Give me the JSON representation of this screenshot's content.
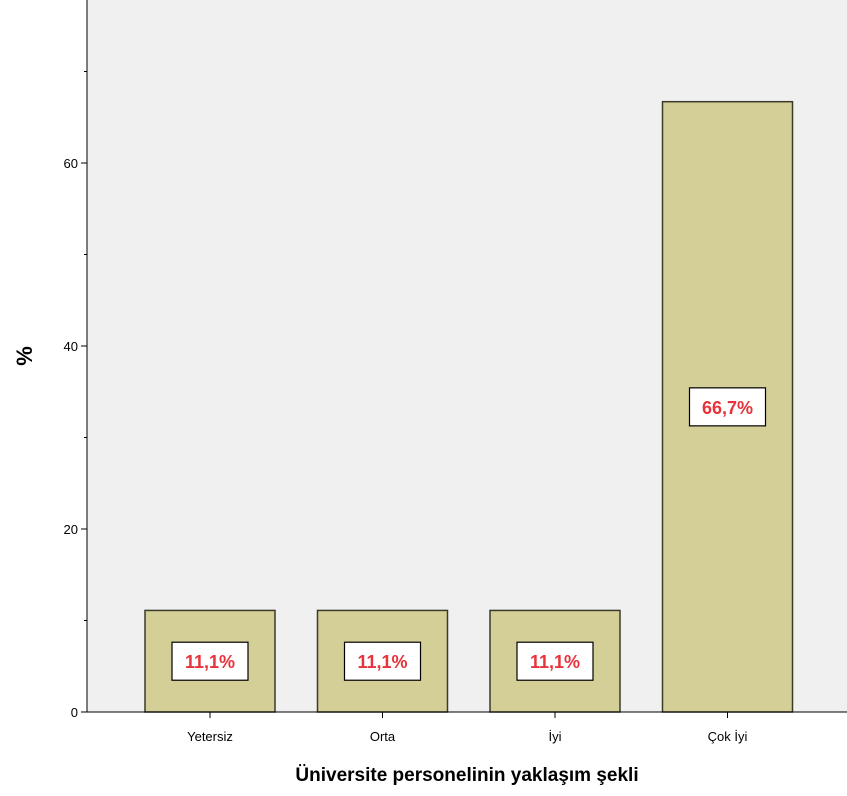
{
  "chart_data": {
    "type": "bar",
    "categories": [
      "Yetersiz",
      "Orta",
      "İyi",
      "Çok İyi"
    ],
    "values": [
      11.1,
      11.1,
      11.1,
      66.7
    ],
    "data_labels": [
      "11,1%",
      "11,1%",
      "11,1%",
      "66,7%"
    ],
    "title": "",
    "xlabel": "Üniversite personelinin yaklaşım şekli",
    "ylabel": "%",
    "ylim": [
      0,
      77
    ],
    "yticks": [
      0,
      20,
      40,
      60
    ],
    "ytick_labels": [
      "0",
      "20",
      "40",
      "60"
    ],
    "grid": false,
    "colors": {
      "plot_background": "#f0f0f0",
      "bar_fill": "#d4cf96",
      "bar_stroke": "#3a3a2a",
      "data_label_text": "#e8323c",
      "data_label_box": "#ffffff"
    }
  }
}
